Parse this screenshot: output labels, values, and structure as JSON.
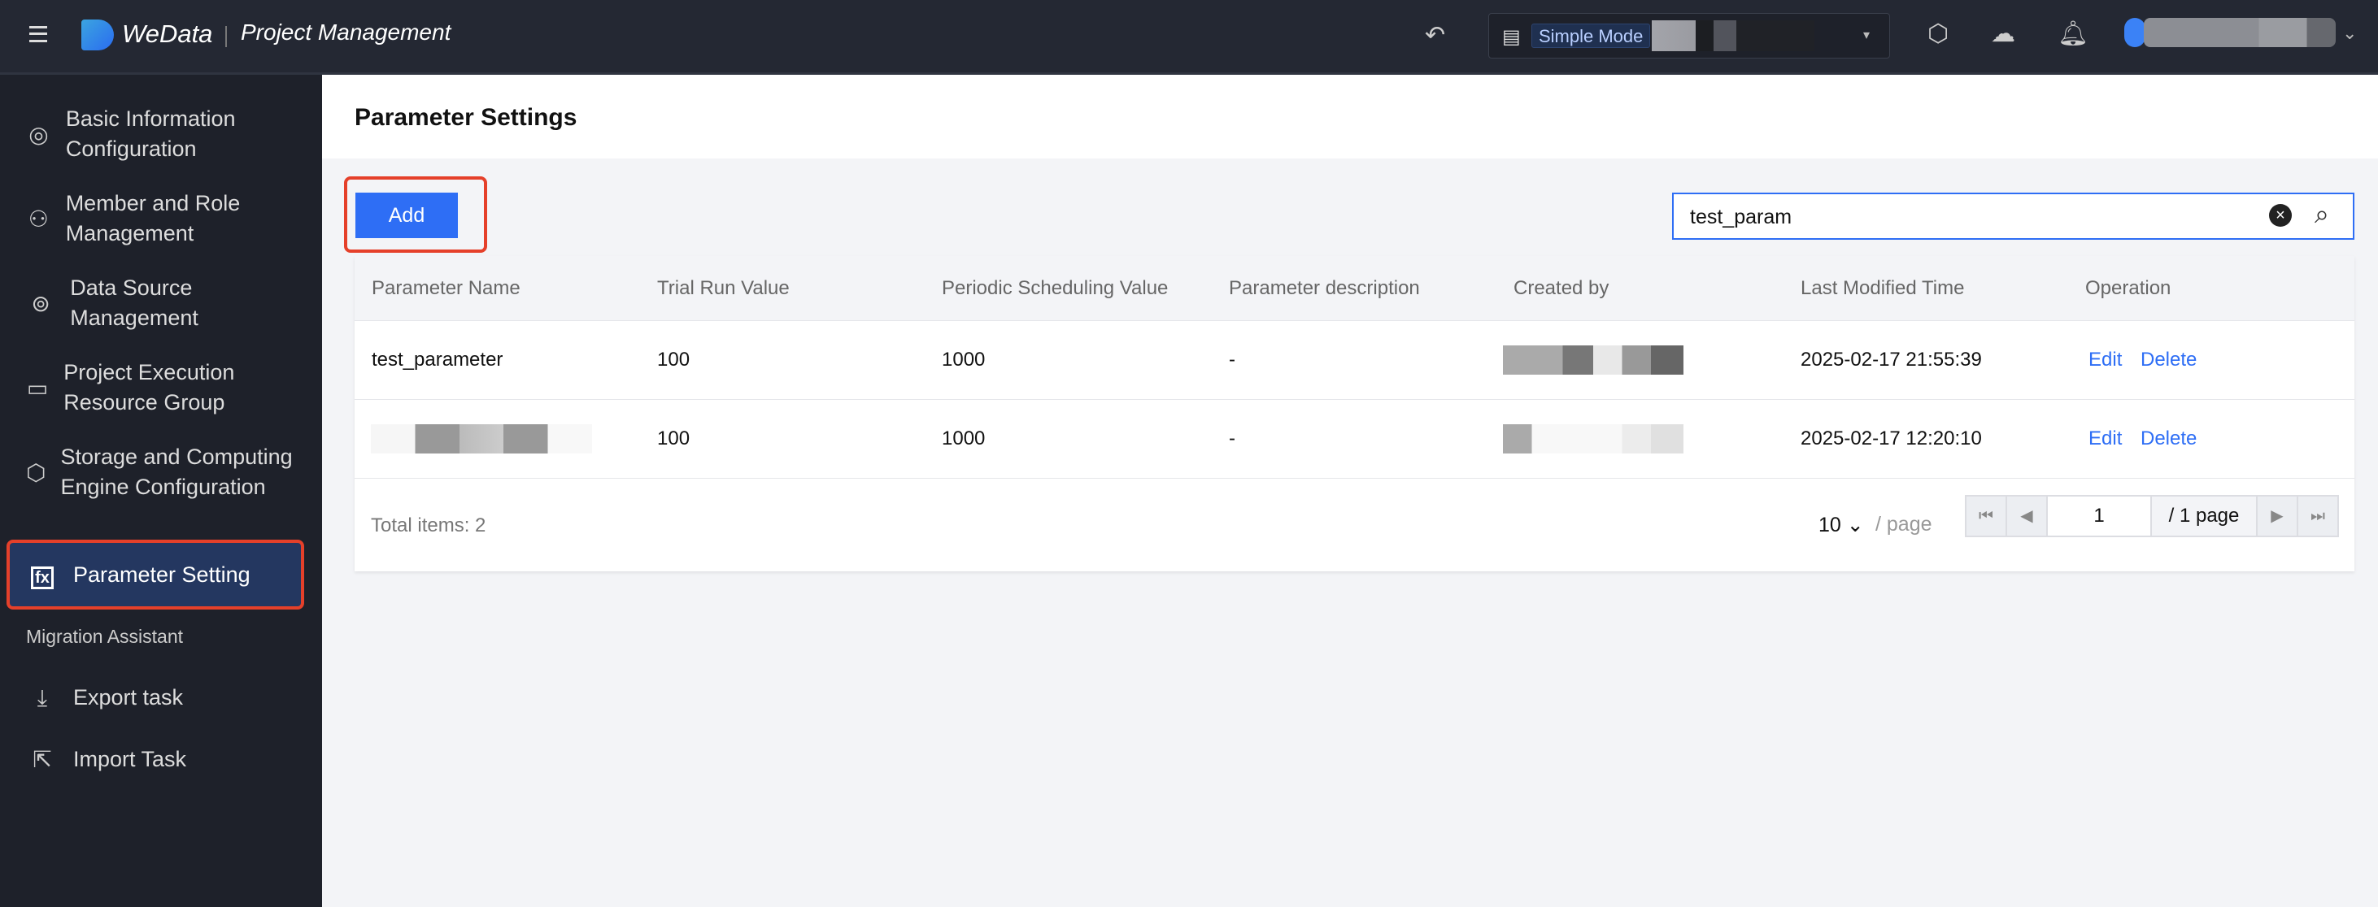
{
  "topbar": {
    "brand": "WeData",
    "app_title": "Project Management",
    "mode_label": "Simple Mode",
    "icons": [
      "menu-icon",
      "undo-icon",
      "folder-icon",
      "settings-icon",
      "cloud-icon",
      "bell-icon",
      "avatar"
    ]
  },
  "sidebar": {
    "items": [
      {
        "label": "Basic Information Configuration",
        "icon": "activity-icon"
      },
      {
        "label": "Member and Role Management",
        "icon": "user-icon"
      },
      {
        "label": "Data Source Management",
        "icon": "datasource-icon"
      },
      {
        "label": "Project Execution Resource Group",
        "icon": "folder-icon"
      },
      {
        "label": "Storage and Computing Engine Configuration",
        "icon": "cube-icon"
      },
      {
        "label": "Parameter Setting",
        "icon": "fx-icon",
        "active": true
      }
    ],
    "section": "Migration Assistant",
    "migration": [
      {
        "label": "Export task",
        "icon": "export-icon"
      },
      {
        "label": "Import Task",
        "icon": "import-icon"
      }
    ]
  },
  "main": {
    "title": "Parameter Settings",
    "add_label": "Add",
    "search_value": "test_param",
    "columns": [
      "Parameter Name",
      "Trial Run Value",
      "Periodic Scheduling Value",
      "Parameter description",
      "Created by",
      "Last Modified Time",
      "Operation"
    ],
    "rows": [
      {
        "name": "test_parameter",
        "trial": "100",
        "periodic": "1000",
        "desc": "-",
        "modified": "2025-02-17 21:55:39",
        "edit": "Edit",
        "delete": "Delete"
      },
      {
        "name": "",
        "trial": "100",
        "periodic": "1000",
        "desc": "-",
        "modified": "2025-02-17 12:20:10",
        "edit": "Edit",
        "delete": "Delete"
      }
    ],
    "pagination": {
      "total_label": "Total items:  2",
      "page_size": "10",
      "per_page_label": "/ page",
      "current_page": "1",
      "total_pages_label": "/ 1 page"
    }
  },
  "colors": {
    "accent": "#2e6ef5",
    "highlight": "#e5402a",
    "topbar": "#242833",
    "sidebar": "#1e212a"
  }
}
